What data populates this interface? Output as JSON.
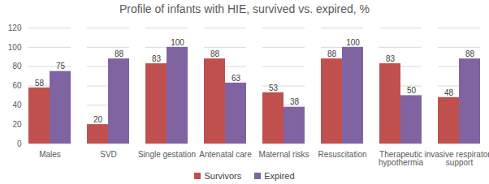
{
  "chart_data": {
    "type": "bar",
    "title": "Profile of infants with HIE, survived vs. expired, %",
    "categories": [
      "Males",
      "SVD",
      "Single gestation",
      "Antenatal care",
      "Maternal risks",
      "Resuscitation",
      "Therapeutic hypothermia",
      "invasive respiratory support"
    ],
    "series": [
      {
        "name": "Survivors",
        "color": "#c0504d",
        "values": [
          58,
          20,
          83,
          88,
          53,
          88,
          83,
          48
        ]
      },
      {
        "name": "Expired",
        "color": "#8064a2",
        "values": [
          75,
          88,
          100,
          63,
          38,
          100,
          50,
          88
        ]
      }
    ],
    "ylim": [
      0,
      120
    ],
    "yticks": [
      0,
      20,
      40,
      60,
      80,
      100,
      120
    ],
    "grid": true,
    "legend": "bottom",
    "data_labels": true
  }
}
